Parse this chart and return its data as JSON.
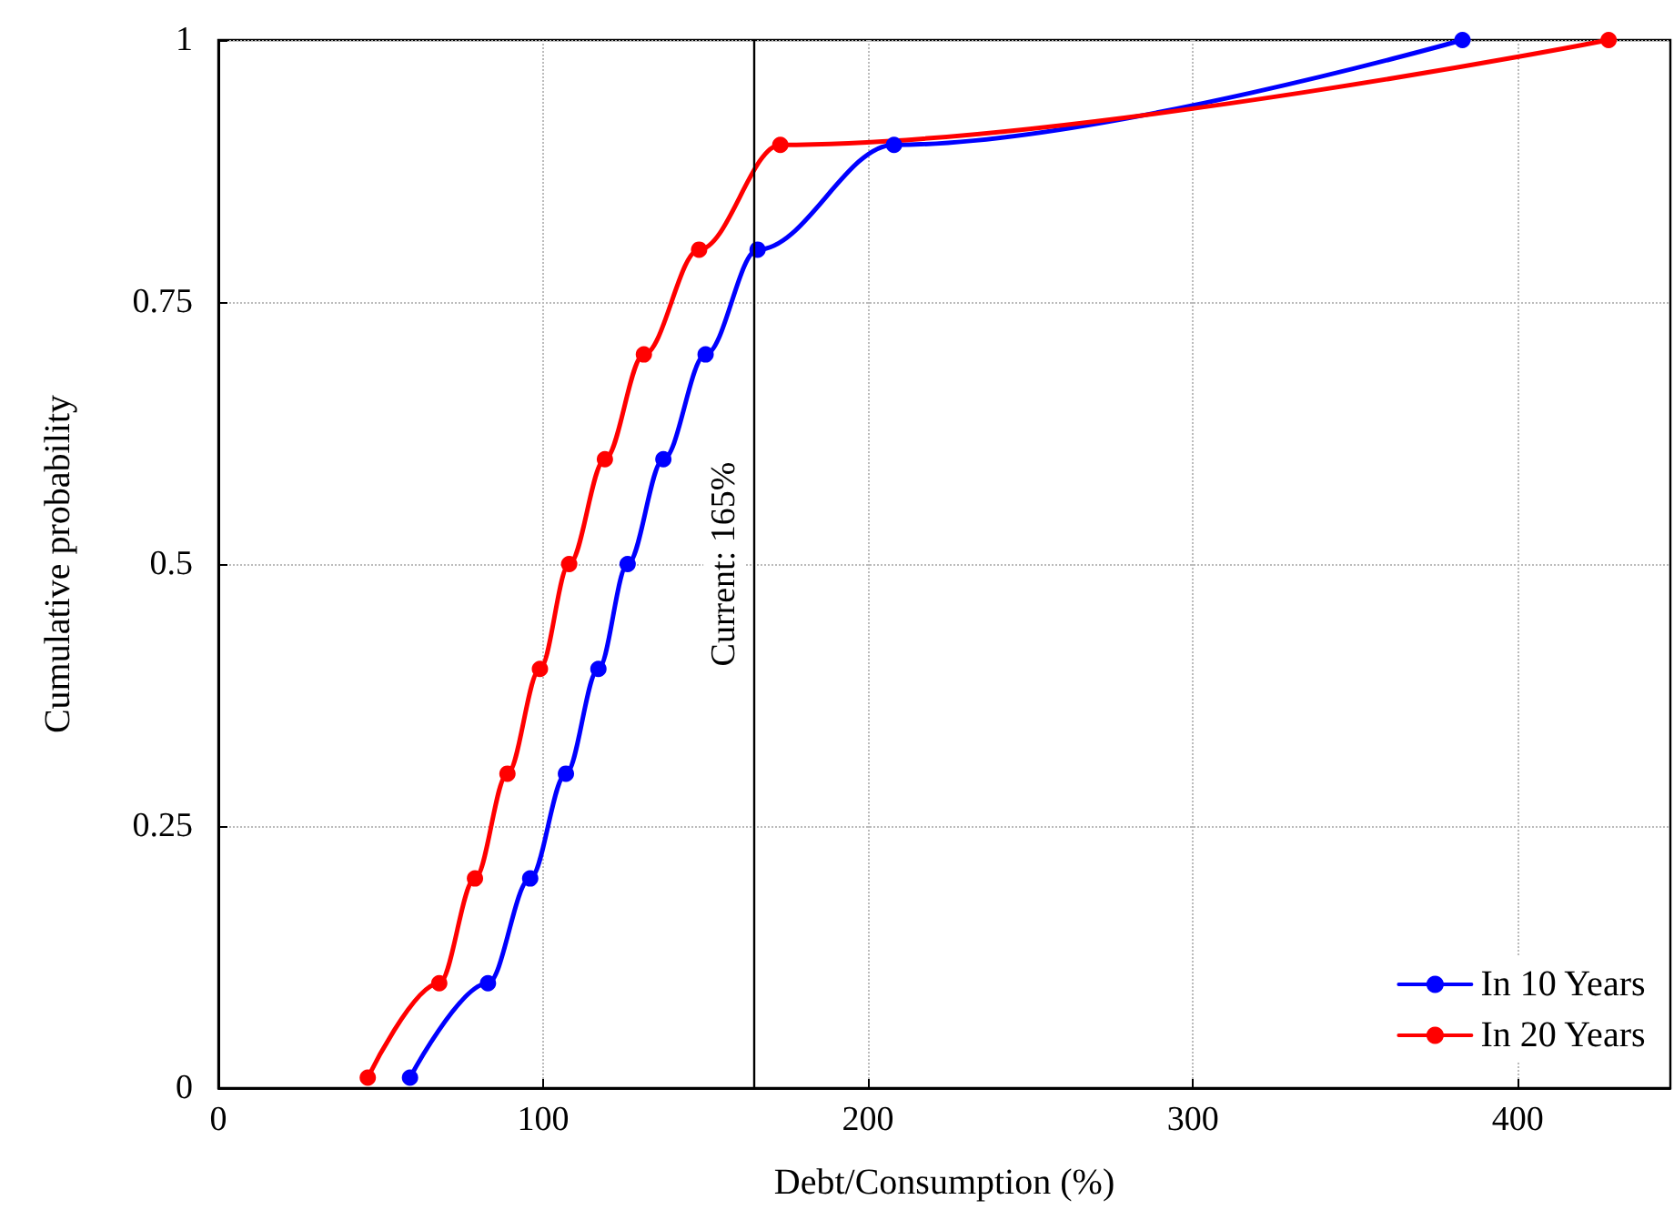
{
  "chart_data": {
    "type": "line",
    "xlabel": "Debt/Consumption (%)",
    "ylabel": "Cumulative probability",
    "xlim": [
      0,
      447
    ],
    "xticks": [
      0,
      100,
      200,
      300,
      400
    ],
    "ylim": [
      0,
      1
    ],
    "yticks": [
      0,
      0.25,
      0.5,
      0.75,
      1
    ],
    "grid": true,
    "legend": "bottom right",
    "marker": "circle",
    "line_style": "solid",
    "series": [
      {
        "name": "In 10 Years",
        "color": "#0000ff",
        "x": [
          59,
          83,
          96,
          107,
          117,
          126,
          137,
          150,
          166,
          208,
          383
        ],
        "values": [
          0.01,
          0.1,
          0.2,
          0.3,
          0.4,
          0.5,
          0.6,
          0.7,
          0.8,
          0.9,
          1
        ]
      },
      {
        "name": "In 20 Years",
        "color": "#ff0000",
        "x": [
          46,
          68,
          79,
          89,
          99,
          108,
          119,
          131,
          148,
          173,
          428
        ],
        "values": [
          0.01,
          0.1,
          0.2,
          0.3,
          0.4,
          0.5,
          0.6,
          0.7,
          0.8,
          0.9,
          1
        ]
      }
    ],
    "ref_lines": [
      {
        "axis": "x",
        "value": 165,
        "label": "Current: 165%",
        "color": "#000000"
      }
    ]
  }
}
